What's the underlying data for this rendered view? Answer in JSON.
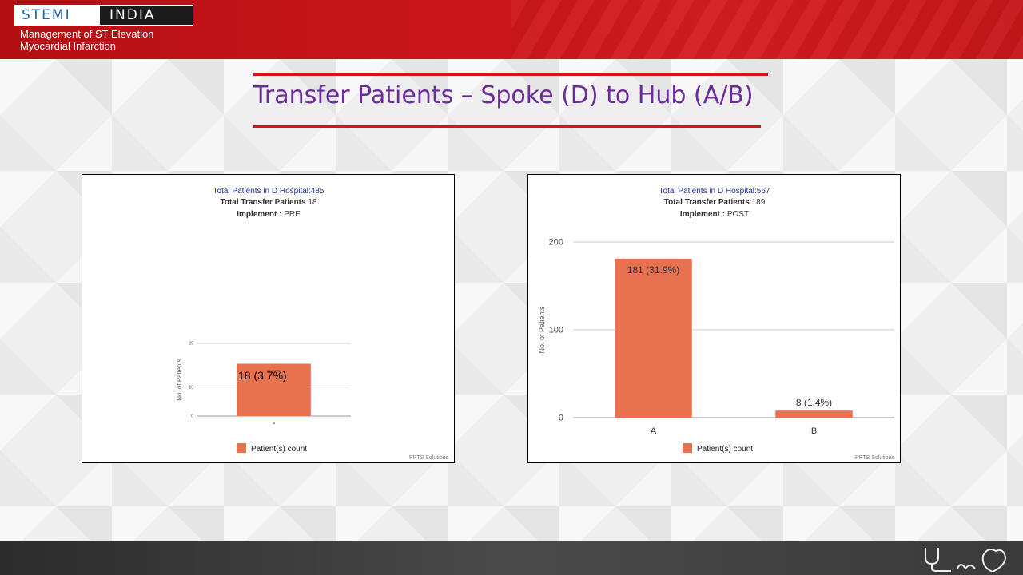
{
  "header": {
    "logo_left": "STEMI",
    "logo_right": "INDIA",
    "subtitle_line1": "Management of ST Elevation",
    "subtitle_line2": "Myocardial Infarction"
  },
  "slide": {
    "title": "Transfer Patients – Spoke (D) to Hub (A/B)"
  },
  "colors": {
    "bar": "#e8714f",
    "title": "#6b2b9a",
    "accent_red": "#d4151b",
    "chart_title_blue": "#1f2f8a"
  },
  "footer": {
    "logo_icon": "stethoscope-heart-icon"
  },
  "chart_data": [
    {
      "type": "bar",
      "title": "Total Patients in D Hospital:485",
      "subtitle_label": "Total Transfer Patients",
      "subtitle_value": ":18",
      "implement_label": "Implement :",
      "implement_value": "PRE",
      "ylabel": "No. of Patients",
      "ylim": [
        0,
        25
      ],
      "yticks": [
        "0",
        "10",
        "25"
      ],
      "categories": [
        "a"
      ],
      "series": [
        {
          "name": "Patient(s) count",
          "values": [
            18
          ],
          "labels": [
            "18 (3.7%)"
          ]
        }
      ],
      "overlay_label": "18 (3.7%)",
      "legend": "Patient(s) count",
      "legend_position": "bottom",
      "credit": "PPTS Solutions",
      "grid": true
    },
    {
      "type": "bar",
      "title": "Total Patients in D Hospital:567",
      "subtitle_label": "Total Transfer Patients",
      "subtitle_value": ":189",
      "implement_label": "Implement :",
      "implement_value": "POST",
      "ylabel": "No. of Patients",
      "ylim": [
        0,
        200
      ],
      "yticks": [
        "0",
        "100",
        "200"
      ],
      "categories": [
        "A",
        "B"
      ],
      "series": [
        {
          "name": "Patient(s) count",
          "values": [
            181,
            8
          ],
          "labels": [
            "181 (31.9%)",
            "8 (1.4%)"
          ]
        }
      ],
      "legend": "Patient(s) count",
      "legend_position": "bottom",
      "credit": "PPTS Solutions",
      "grid": true
    }
  ]
}
